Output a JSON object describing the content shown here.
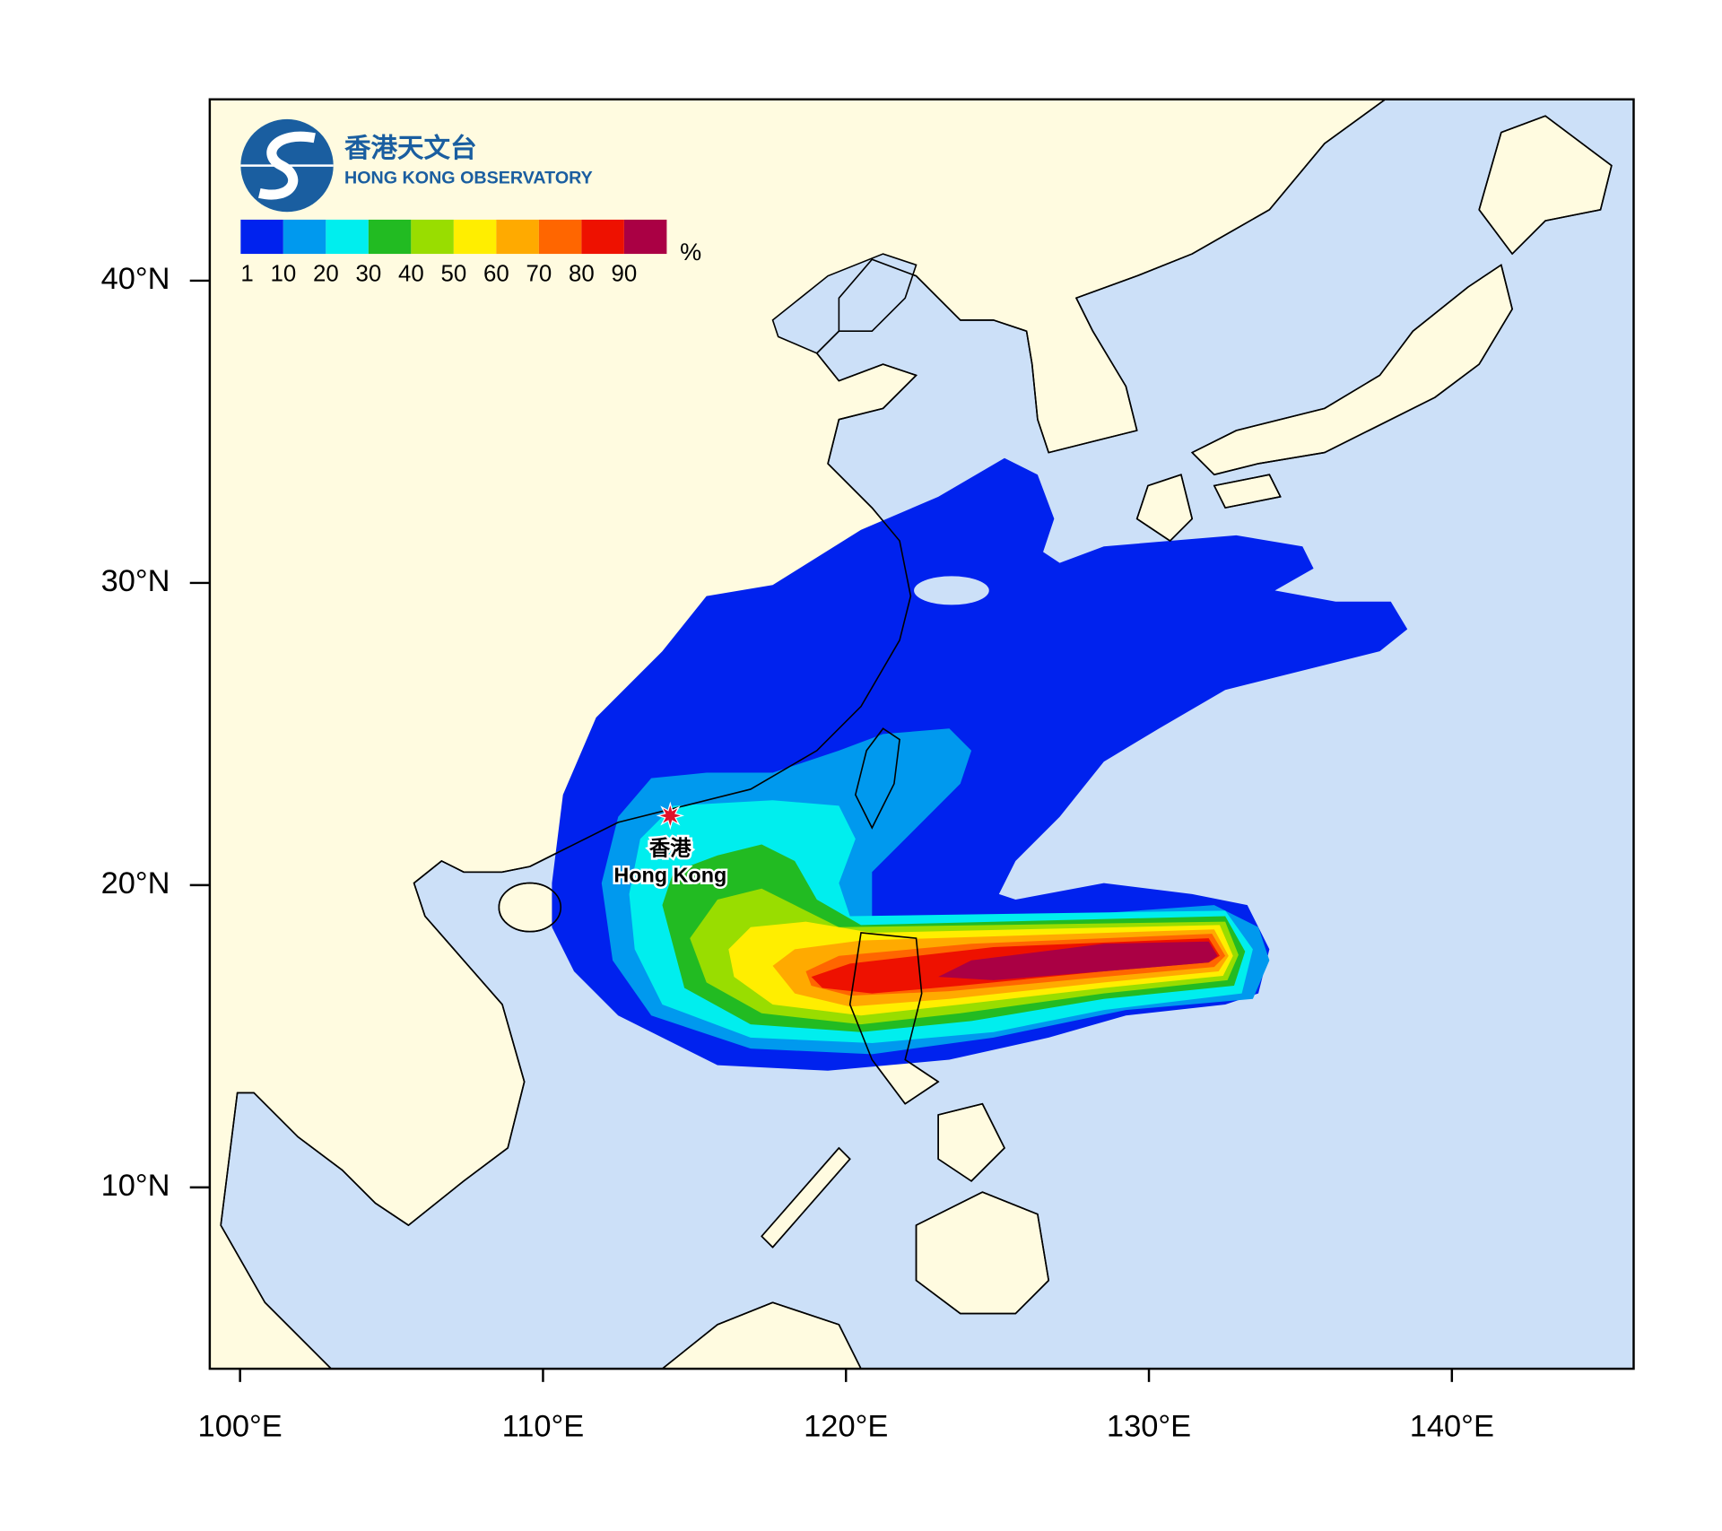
{
  "logo": {
    "name_zh": "香港天文台",
    "name_en": "HONG KONG OBSERVATORY"
  },
  "chart_data": {
    "type": "map",
    "xlim": [
      99,
      146
    ],
    "ylim": [
      4,
      46
    ],
    "xticks": [
      {
        "value": 100,
        "label": "100°E"
      },
      {
        "value": 110,
        "label": "110°E"
      },
      {
        "value": 120,
        "label": "120°E"
      },
      {
        "value": 130,
        "label": "130°E"
      },
      {
        "value": 140,
        "label": "140°E"
      }
    ],
    "yticks": [
      {
        "value": 10,
        "label": "10°N"
      },
      {
        "value": 20,
        "label": "20°N"
      },
      {
        "value": 30,
        "label": "30°N"
      },
      {
        "value": 40,
        "label": "40°N"
      }
    ],
    "legend": {
      "levels": [
        1,
        10,
        20,
        30,
        40,
        50,
        60,
        70,
        80,
        90
      ],
      "colors": [
        "#0022ee",
        "#0099ee",
        "#00eeee",
        "#22bb22",
        "#99dd00",
        "#ffee00",
        "#ffaa00",
        "#ff6600",
        "#ee1100",
        "#aa0044"
      ],
      "unit": "%"
    },
    "annotations": [
      {
        "label_zh": "香港",
        "label_en": "Hong Kong",
        "lon": 114.2,
        "lat": 22.3
      }
    ]
  }
}
